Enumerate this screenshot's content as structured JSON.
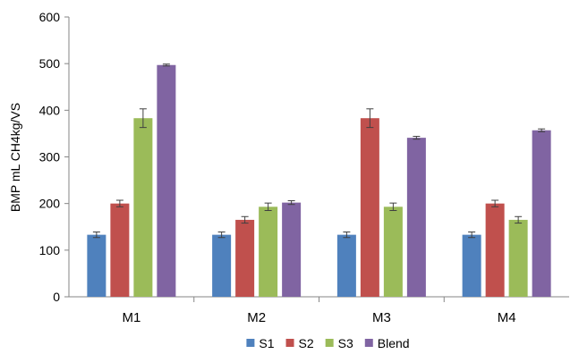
{
  "chart_data": {
    "type": "bar",
    "title": "",
    "xlabel": "",
    "ylabel": "BMP mL CH4kg/VS",
    "ylim": [
      0,
      600
    ],
    "yticks": [
      0,
      100,
      200,
      300,
      400,
      500,
      600
    ],
    "grid": false,
    "legend_position": "bottom",
    "categories": [
      "M1",
      "M2",
      "M3",
      "M4"
    ],
    "series": [
      {
        "name": "S1",
        "color": "#4f81bd",
        "values": [
          133,
          133,
          133,
          133
        ],
        "errors": [
          6,
          6,
          6,
          6
        ]
      },
      {
        "name": "S2",
        "color": "#c0504d",
        "values": [
          200,
          165,
          383,
          200
        ],
        "errors": [
          7,
          7,
          20,
          7
        ]
      },
      {
        "name": "S3",
        "color": "#9bbb59",
        "values": [
          383,
          193,
          193,
          165
        ],
        "errors": [
          20,
          8,
          8,
          7
        ]
      },
      {
        "name": "Blend",
        "color": "#8064a2",
        "values": [
          497,
          202,
          341,
          357
        ],
        "errors": [
          2,
          4,
          3,
          3
        ]
      }
    ]
  }
}
